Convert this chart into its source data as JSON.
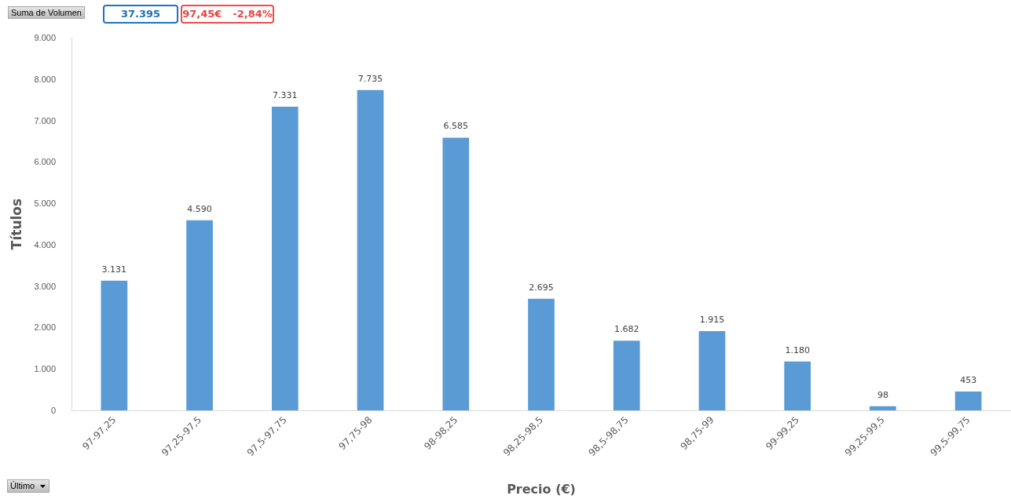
{
  "chart_data": {
    "type": "bar",
    "xlabel": "Precio (€)",
    "ylabel": "Títulos",
    "categories": [
      "97-97,25",
      "97,25-97,5",
      "97,5-97,75",
      "97,75-98",
      "98-98,25",
      "98,25-98,5",
      "98,5-98,75",
      "98,75-99",
      "99-99,25",
      "99,25-99,5",
      "99,5-99,75"
    ],
    "values": [
      3131,
      4590,
      7331,
      7735,
      6585,
      2695,
      1682,
      1915,
      1180,
      98,
      453
    ],
    "value_labels": [
      "3.131",
      "4.590",
      "7.331",
      "7.735",
      "6.585",
      "2.695",
      "1.682",
      "1.915",
      "1.180",
      "98",
      "453"
    ],
    "color": "#5b9bd5",
    "ylim": [
      0,
      9000
    ],
    "yticks": [
      0,
      {
        "value": 1000,
        "label": "1.000"
      },
      {
        "value": 2000,
        "label": "2.000"
      },
      {
        "value": 3000,
        "label": "3.000"
      },
      {
        "value": 4000,
        "label": "4.000"
      },
      {
        "value": 5000,
        "label": "5.000"
      },
      {
        "value": 6000,
        "label": "6.000"
      },
      {
        "value": 7000,
        "label": "7.000"
      },
      {
        "value": 8000,
        "label": "8.000"
      },
      {
        "value": 9000,
        "label": "9.000"
      }
    ],
    "grid": false,
    "annotations": [
      "Suma de Volumen",
      "37.395",
      "97,45€",
      "-2,84%",
      "Último"
    ]
  }
}
